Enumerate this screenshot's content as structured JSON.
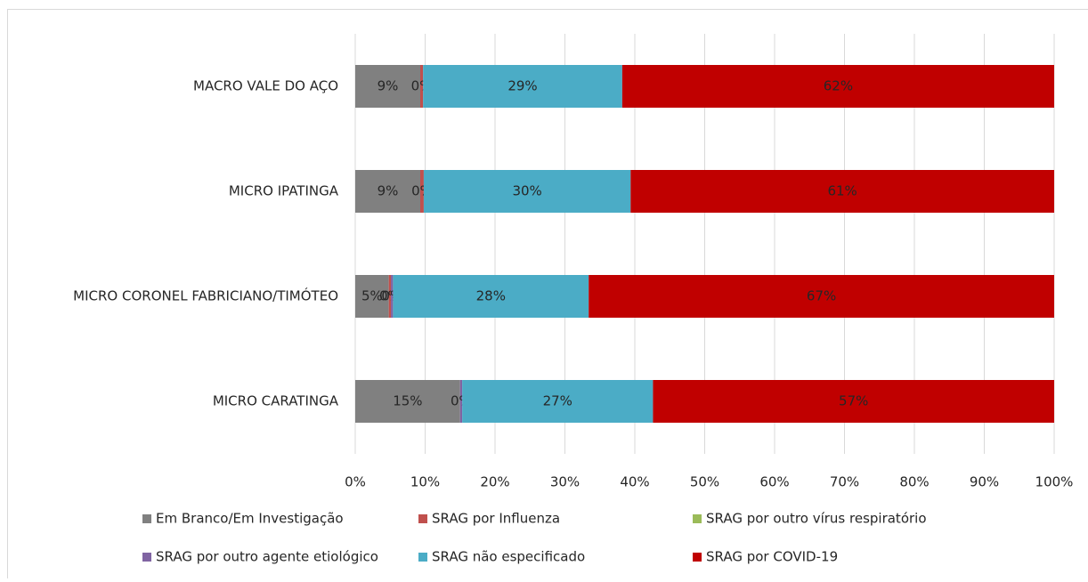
{
  "chart_data": {
    "type": "stacked_bar_horizontal",
    "categories": [
      "MACRO VALE DO AÇO",
      "MICRO IPATINGA",
      "MICRO CORONEL FABRICIANO/TIMÓTEO",
      "MICRO CARATINGA"
    ],
    "series": [
      {
        "name": "Em Branco/Em Investigação",
        "color": "#808080",
        "values": [
          9.3,
          9.3,
          4.8,
          15.0
        ],
        "value_labels": [
          "9%",
          "9%",
          "5%",
          "15%"
        ]
      },
      {
        "name": "SRAG por Influenza",
        "color": "#c0504d",
        "values": [
          0.4,
          0.5,
          0.3,
          0
        ],
        "value_labels": [
          "0%",
          "0%",
          "0%",
          null
        ]
      },
      {
        "name": "SRAG por outro vírus respiratório",
        "color": "#9bbb59",
        "values": [
          0,
          0,
          0,
          0
        ]
      },
      {
        "name": "SRAG por outro agente etiológico",
        "color": "#8064a2",
        "values": [
          0,
          0,
          0.3,
          0.3
        ],
        "value_labels": [
          null,
          null,
          "0%",
          "0%"
        ]
      },
      {
        "name": "SRAG não especificado",
        "color": "#4bacc6",
        "values": [
          28.5,
          29.6,
          28.0,
          27.3
        ],
        "value_labels": [
          "29%",
          "30%",
          "28%",
          "27%"
        ]
      },
      {
        "name": "SRAG por COVID-19",
        "color": "#c00000",
        "values": [
          61.8,
          60.6,
          66.6,
          57.4
        ],
        "value_labels": [
          "62%",
          "61%",
          "67%",
          "57%"
        ]
      }
    ],
    "xlim": [
      0,
      100
    ],
    "xticks": [
      {
        "value": 0,
        "label": "0%"
      },
      {
        "value": 10,
        "label": "10%"
      },
      {
        "value": 20,
        "label": "20%"
      },
      {
        "value": 30,
        "label": "30%"
      },
      {
        "value": 40,
        "label": "40%"
      },
      {
        "value": 50,
        "label": "50%"
      },
      {
        "value": 60,
        "label": "60%"
      },
      {
        "value": 70,
        "label": "70%"
      },
      {
        "value": 80,
        "label": "80%"
      },
      {
        "value": 90,
        "label": "90%"
      },
      {
        "value": 100,
        "label": "100%"
      }
    ],
    "grid": true,
    "legend": "bottom"
  }
}
